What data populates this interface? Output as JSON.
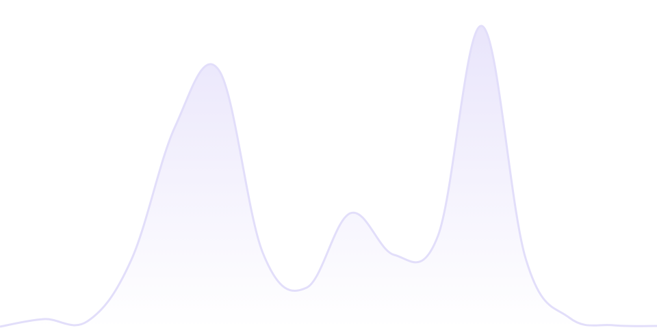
{
  "chart_data": {
    "type": "area",
    "title": "",
    "xlabel": "",
    "ylabel": "",
    "xlim": [
      0,
      15
    ],
    "ylim": [
      0,
      480
    ],
    "grid": false,
    "legend": "none",
    "smooth": true,
    "colors": {
      "stroke": "#e2defa",
      "fill_top": "#e9e5fb",
      "fill_bottom": "#ffffff"
    },
    "series": [
      {
        "x": [
          0,
          1,
          2,
          3,
          4,
          5,
          6,
          7,
          8,
          9,
          10,
          11,
          12,
          13,
          14,
          15
        ],
        "values": [
          2,
          13,
          10,
          100,
          295,
          377,
          110,
          59,
          168,
          107,
          135,
          442,
          102,
          15,
          4,
          3
        ]
      }
    ]
  }
}
